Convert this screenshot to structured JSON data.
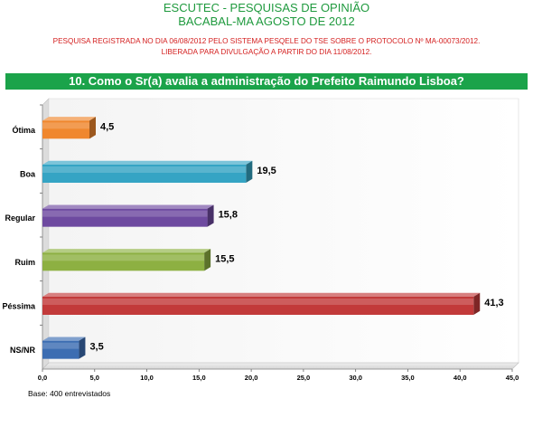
{
  "header": {
    "line1": "ESCUTEC - PESQUISAS DE OPINIÃO",
    "line2": "BACABAL-MA AGOSTO DE 2012"
  },
  "registration": {
    "line1": "PESQUISA REGISTRADA NO DIA 06/08/2012 PELO SISTEMA PESQELE DO TSE SOBRE O PROTOCOLO Nº MA-00073/2012.",
    "line2": "LIBERADA PARA DIVULGAÇÃO A PARTIR DO DIA 11/08/2012."
  },
  "question": "10. Como o Sr(a) avalia a administração do Prefeito Raimundo Lisboa?",
  "footer": "Base: 400 entrevistados",
  "chart_data": {
    "type": "bar",
    "orientation": "horizontal",
    "categories": [
      "Ótima",
      "Boa",
      "Regular",
      "Ruim",
      "Péssima",
      "NS/NR"
    ],
    "values": [
      4.5,
      19.5,
      15.8,
      15.5,
      41.3,
      3.5
    ],
    "value_labels": [
      "4,5",
      "19,5",
      "15,8",
      "15,5",
      "41,3",
      "3,5"
    ],
    "colors": [
      "#f0872e",
      "#35a4c4",
      "#6e4aa0",
      "#8db042",
      "#c23a3a",
      "#3c6db2"
    ],
    "xlim": [
      0,
      45
    ],
    "xticks": [
      "0,0",
      "5,0",
      "10,0",
      "15,0",
      "20,0",
      "25,0",
      "30,0",
      "35,0",
      "40,0",
      "45,0"
    ],
    "grid": false,
    "style": "3d"
  }
}
